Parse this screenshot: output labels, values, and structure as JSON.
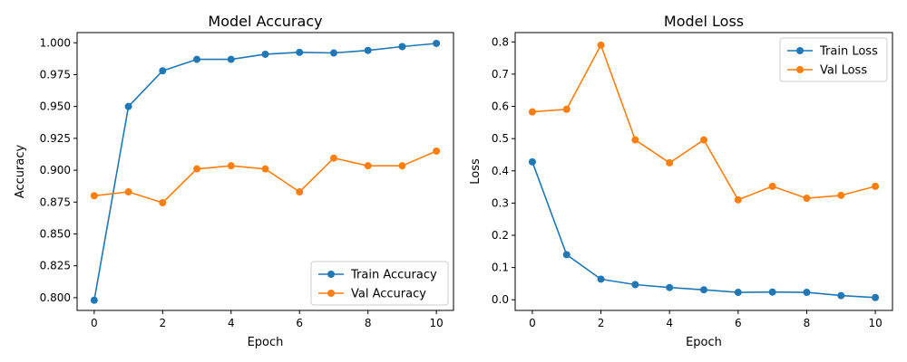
{
  "chart_data": [
    {
      "type": "line",
      "title": "Model Accuracy",
      "xlabel": "Epoch",
      "ylabel": "Accuracy",
      "x": [
        0,
        1,
        2,
        3,
        4,
        5,
        6,
        7,
        8,
        9,
        10
      ],
      "xlim": [
        -0.5,
        10.5
      ],
      "ylim": [
        0.79,
        1.008
      ],
      "xticks": [
        0,
        2,
        4,
        6,
        8,
        10
      ],
      "xtick_labels": [
        "0",
        "2",
        "4",
        "6",
        "8",
        "10"
      ],
      "yticks": [
        0.8,
        0.825,
        0.85,
        0.875,
        0.9,
        0.925,
        0.95,
        0.975,
        1.0
      ],
      "ytick_labels": [
        "0.800",
        "0.825",
        "0.850",
        "0.875",
        "0.900",
        "0.925",
        "0.950",
        "0.975",
        "1.000"
      ],
      "grid": false,
      "legend_position": "lower-right",
      "series": [
        {
          "name": "Train Accuracy",
          "color": "#1f77b4",
          "values": [
            0.798,
            0.95,
            0.978,
            0.987,
            0.987,
            0.991,
            0.9925,
            0.992,
            0.994,
            0.997,
            0.9995
          ]
        },
        {
          "name": "Val Accuracy",
          "color": "#ff7f0e",
          "values": [
            0.88,
            0.883,
            0.8745,
            0.901,
            0.9035,
            0.901,
            0.883,
            0.9095,
            0.9035,
            0.9035,
            0.915
          ]
        }
      ]
    },
    {
      "type": "line",
      "title": "Model Loss",
      "xlabel": "Epoch",
      "ylabel": "Loss",
      "x": [
        0,
        1,
        2,
        3,
        4,
        5,
        6,
        7,
        8,
        9,
        10
      ],
      "xlim": [
        -0.5,
        10.5
      ],
      "ylim": [
        -0.033,
        0.829
      ],
      "xticks": [
        0,
        2,
        4,
        6,
        8,
        10
      ],
      "xtick_labels": [
        "0",
        "2",
        "4",
        "6",
        "8",
        "10"
      ],
      "yticks": [
        0.0,
        0.1,
        0.2,
        0.3,
        0.4,
        0.5,
        0.6,
        0.7,
        0.8
      ],
      "ytick_labels": [
        "0.0",
        "0.1",
        "0.2",
        "0.3",
        "0.4",
        "0.5",
        "0.6",
        "0.7",
        "0.8"
      ],
      "grid": false,
      "legend_position": "upper-right",
      "series": [
        {
          "name": "Train Loss",
          "color": "#1f77b4",
          "values": [
            0.428,
            0.14,
            0.064,
            0.047,
            0.038,
            0.031,
            0.023,
            0.024,
            0.023,
            0.013,
            0.007
          ]
        },
        {
          "name": "Val Loss",
          "color": "#ff7f0e",
          "values": [
            0.583,
            0.591,
            0.79,
            0.496,
            0.425,
            0.496,
            0.31,
            0.352,
            0.315,
            0.324,
            0.352
          ]
        }
      ]
    }
  ]
}
